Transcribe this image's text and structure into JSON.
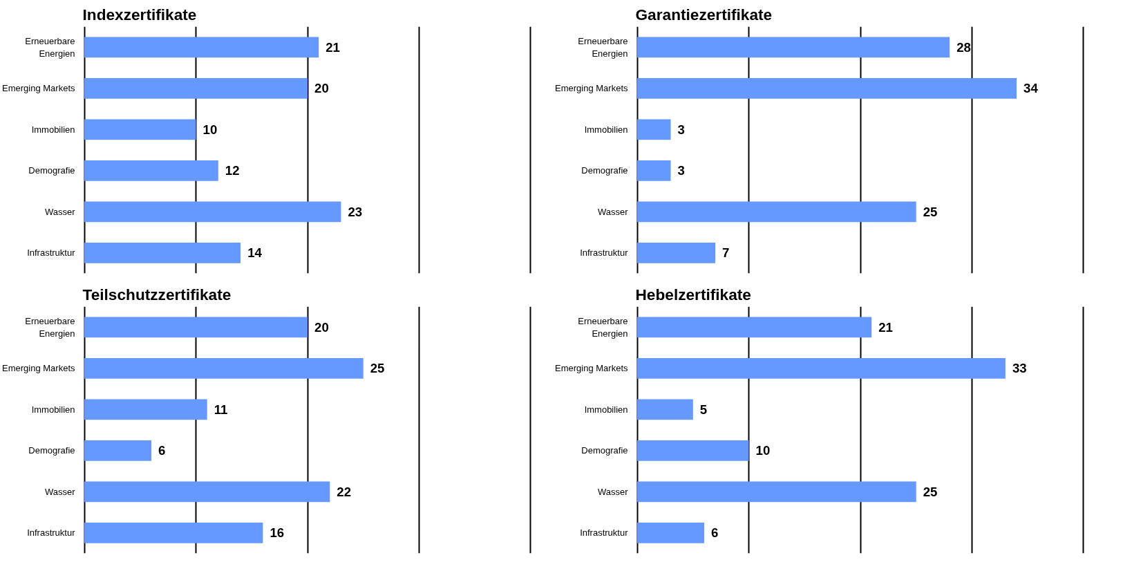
{
  "chart_data": [
    {
      "type": "bar",
      "orientation": "horizontal",
      "title": "Indexzertifikate",
      "categories": [
        "Erneuerbare Energien",
        "Emerging Markets",
        "Immobilien",
        "Demografie",
        "Wasser",
        "Infrastruktur"
      ],
      "values": [
        21,
        20,
        10,
        12,
        23,
        14
      ],
      "color": "#6699ff",
      "xlim": [
        0,
        40
      ],
      "xticks": [
        {
          "value": 0,
          "label": null
        },
        {
          "value": 10,
          "label": null
        },
        {
          "value": 20,
          "label": null
        },
        {
          "value": 30,
          "label": null
        },
        {
          "value": 40,
          "label": null
        }
      ],
      "grid": "x",
      "tick_labels": "y",
      "data_labels": true
    },
    {
      "type": "bar",
      "orientation": "horizontal",
      "title": "Garantiezertifikate",
      "categories": [
        "Erneuerbare Energien",
        "Emerging Markets",
        "Immobilien",
        "Demografie",
        "Wasser",
        "Infrastruktur"
      ],
      "values": [
        28,
        34,
        3,
        3,
        25,
        7
      ],
      "color": "#6699ff",
      "xlim": [
        0,
        40
      ],
      "xticks": [
        {
          "value": 0,
          "label": null
        },
        {
          "value": 10,
          "label": null
        },
        {
          "value": 20,
          "label": null
        },
        {
          "value": 30,
          "label": null
        },
        {
          "value": 40,
          "label": null
        }
      ],
      "grid": "x",
      "tick_labels": "y",
      "data_labels": true
    },
    {
      "type": "bar",
      "orientation": "horizontal",
      "title": "Teilschutzzertifikate",
      "categories": [
        "Erneuerbare Energien",
        "Emerging Markets",
        "Immobilien",
        "Demografie",
        "Wasser",
        "Infrastruktur"
      ],
      "values": [
        20,
        25,
        11,
        6,
        22,
        16
      ],
      "color": "#6699ff",
      "xlim": [
        0,
        40
      ],
      "xticks": [
        {
          "value": 0,
          "label": null
        },
        {
          "value": 10,
          "label": null
        },
        {
          "value": 20,
          "label": null
        },
        {
          "value": 30,
          "label": null
        },
        {
          "value": 40,
          "label": null
        }
      ],
      "grid": "x",
      "tick_labels": "y",
      "data_labels": true
    },
    {
      "type": "bar",
      "orientation": "horizontal",
      "title": "Hebelzertifikate",
      "categories": [
        "Erneuerbare Energien",
        "Emerging Markets",
        "Immobilien",
        "Demografie",
        "Wasser",
        "Infrastruktur"
      ],
      "values": [
        21,
        33,
        5,
        10,
        25,
        6
      ],
      "color": "#6699ff",
      "xlim": [
        0,
        40
      ],
      "xticks": [
        {
          "value": 0,
          "label": null
        },
        {
          "value": 10,
          "label": null
        },
        {
          "value": 20,
          "label": null
        },
        {
          "value": 30,
          "label": null
        },
        {
          "value": 40,
          "label": null
        }
      ],
      "grid": "x",
      "tick_labels": "y",
      "data_labels": true
    }
  ]
}
